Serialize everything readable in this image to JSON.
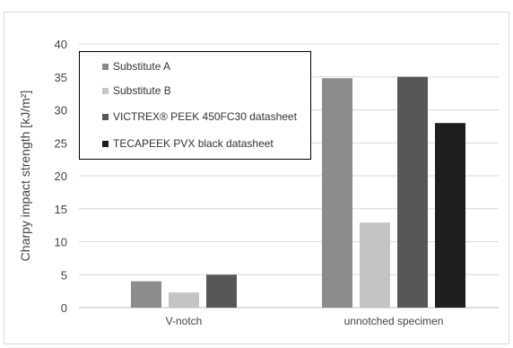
{
  "chart_data": {
    "type": "bar",
    "categories": [
      "V-notch",
      "unnotched specimen"
    ],
    "series": [
      {
        "name": "Substitute A",
        "values": [
          4.0,
          34.8
        ],
        "color": "#8c8c8c"
      },
      {
        "name": "Substitute B",
        "values": [
          2.3,
          12.9
        ],
        "color": "#c4c4c4"
      },
      {
        "name": "VICTREX® PEEK 450FC30 datasheet",
        "values": [
          5.0,
          35.0
        ],
        "color": "#575757"
      },
      {
        "name": "TECAPEEK PVX black datasheet",
        "values": [
          null,
          28.0
        ],
        "color": "#1e1e1e"
      }
    ],
    "ylabel": "Charpy impact strength [kJ/m²]",
    "xlabel": "",
    "ylim": [
      0,
      40
    ],
    "yticks": [
      "0",
      "5",
      "10",
      "15",
      "20",
      "25",
      "30",
      "35",
      "40"
    ],
    "grid": true,
    "legend_position": "top-left"
  }
}
